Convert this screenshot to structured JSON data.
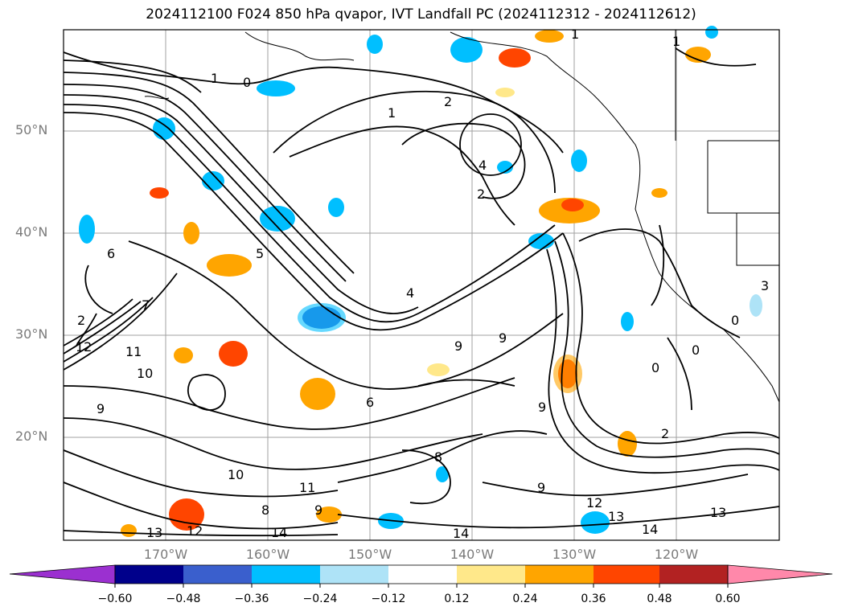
{
  "title": "2024112100 F024 850 hPa qvapor, IVT Landfall PC (2024112312 - 2024112612)",
  "latitude_labels": [
    "50°N",
    "40°N",
    "30°N",
    "20°N"
  ],
  "longitude_labels": [
    "170°W",
    "160°W",
    "150°W",
    "140°W",
    "130°W",
    "120°W"
  ],
  "contour_labels": [
    "1",
    "0",
    "1",
    "2",
    "4",
    "2",
    "1",
    "5",
    "6",
    "4",
    "2",
    "7",
    "12",
    "11",
    "10",
    "9",
    "9",
    "9",
    "6",
    "10",
    "8",
    "11",
    "12",
    "13",
    "14",
    "13",
    "13",
    "14",
    "12",
    "8",
    "9",
    "0",
    "0",
    "2",
    "1",
    "9",
    "14",
    "3",
    "0",
    "9"
  ],
  "colorbar": {
    "ticks": [
      "−0.60",
      "−0.48",
      "−0.36",
      "−0.24",
      "−0.12",
      "0.12",
      "0.24",
      "0.36",
      "0.48",
      "0.60"
    ],
    "colors": [
      "#9b30d0",
      "#00008b",
      "#3a5fcd",
      "#00bfff",
      "#aee3f7",
      "#ffffff",
      "#ffe88a",
      "#ffa500",
      "#ff4500",
      "#b22222",
      "#ff88aa"
    ]
  },
  "colors": {
    "pos_low": "#ffe88a",
    "pos_mid": "#ffa500",
    "pos_high": "#ff4500",
    "neg_low": "#aee3f7",
    "neg_mid": "#00bfff",
    "neg_high": "#3a5fcd"
  }
}
